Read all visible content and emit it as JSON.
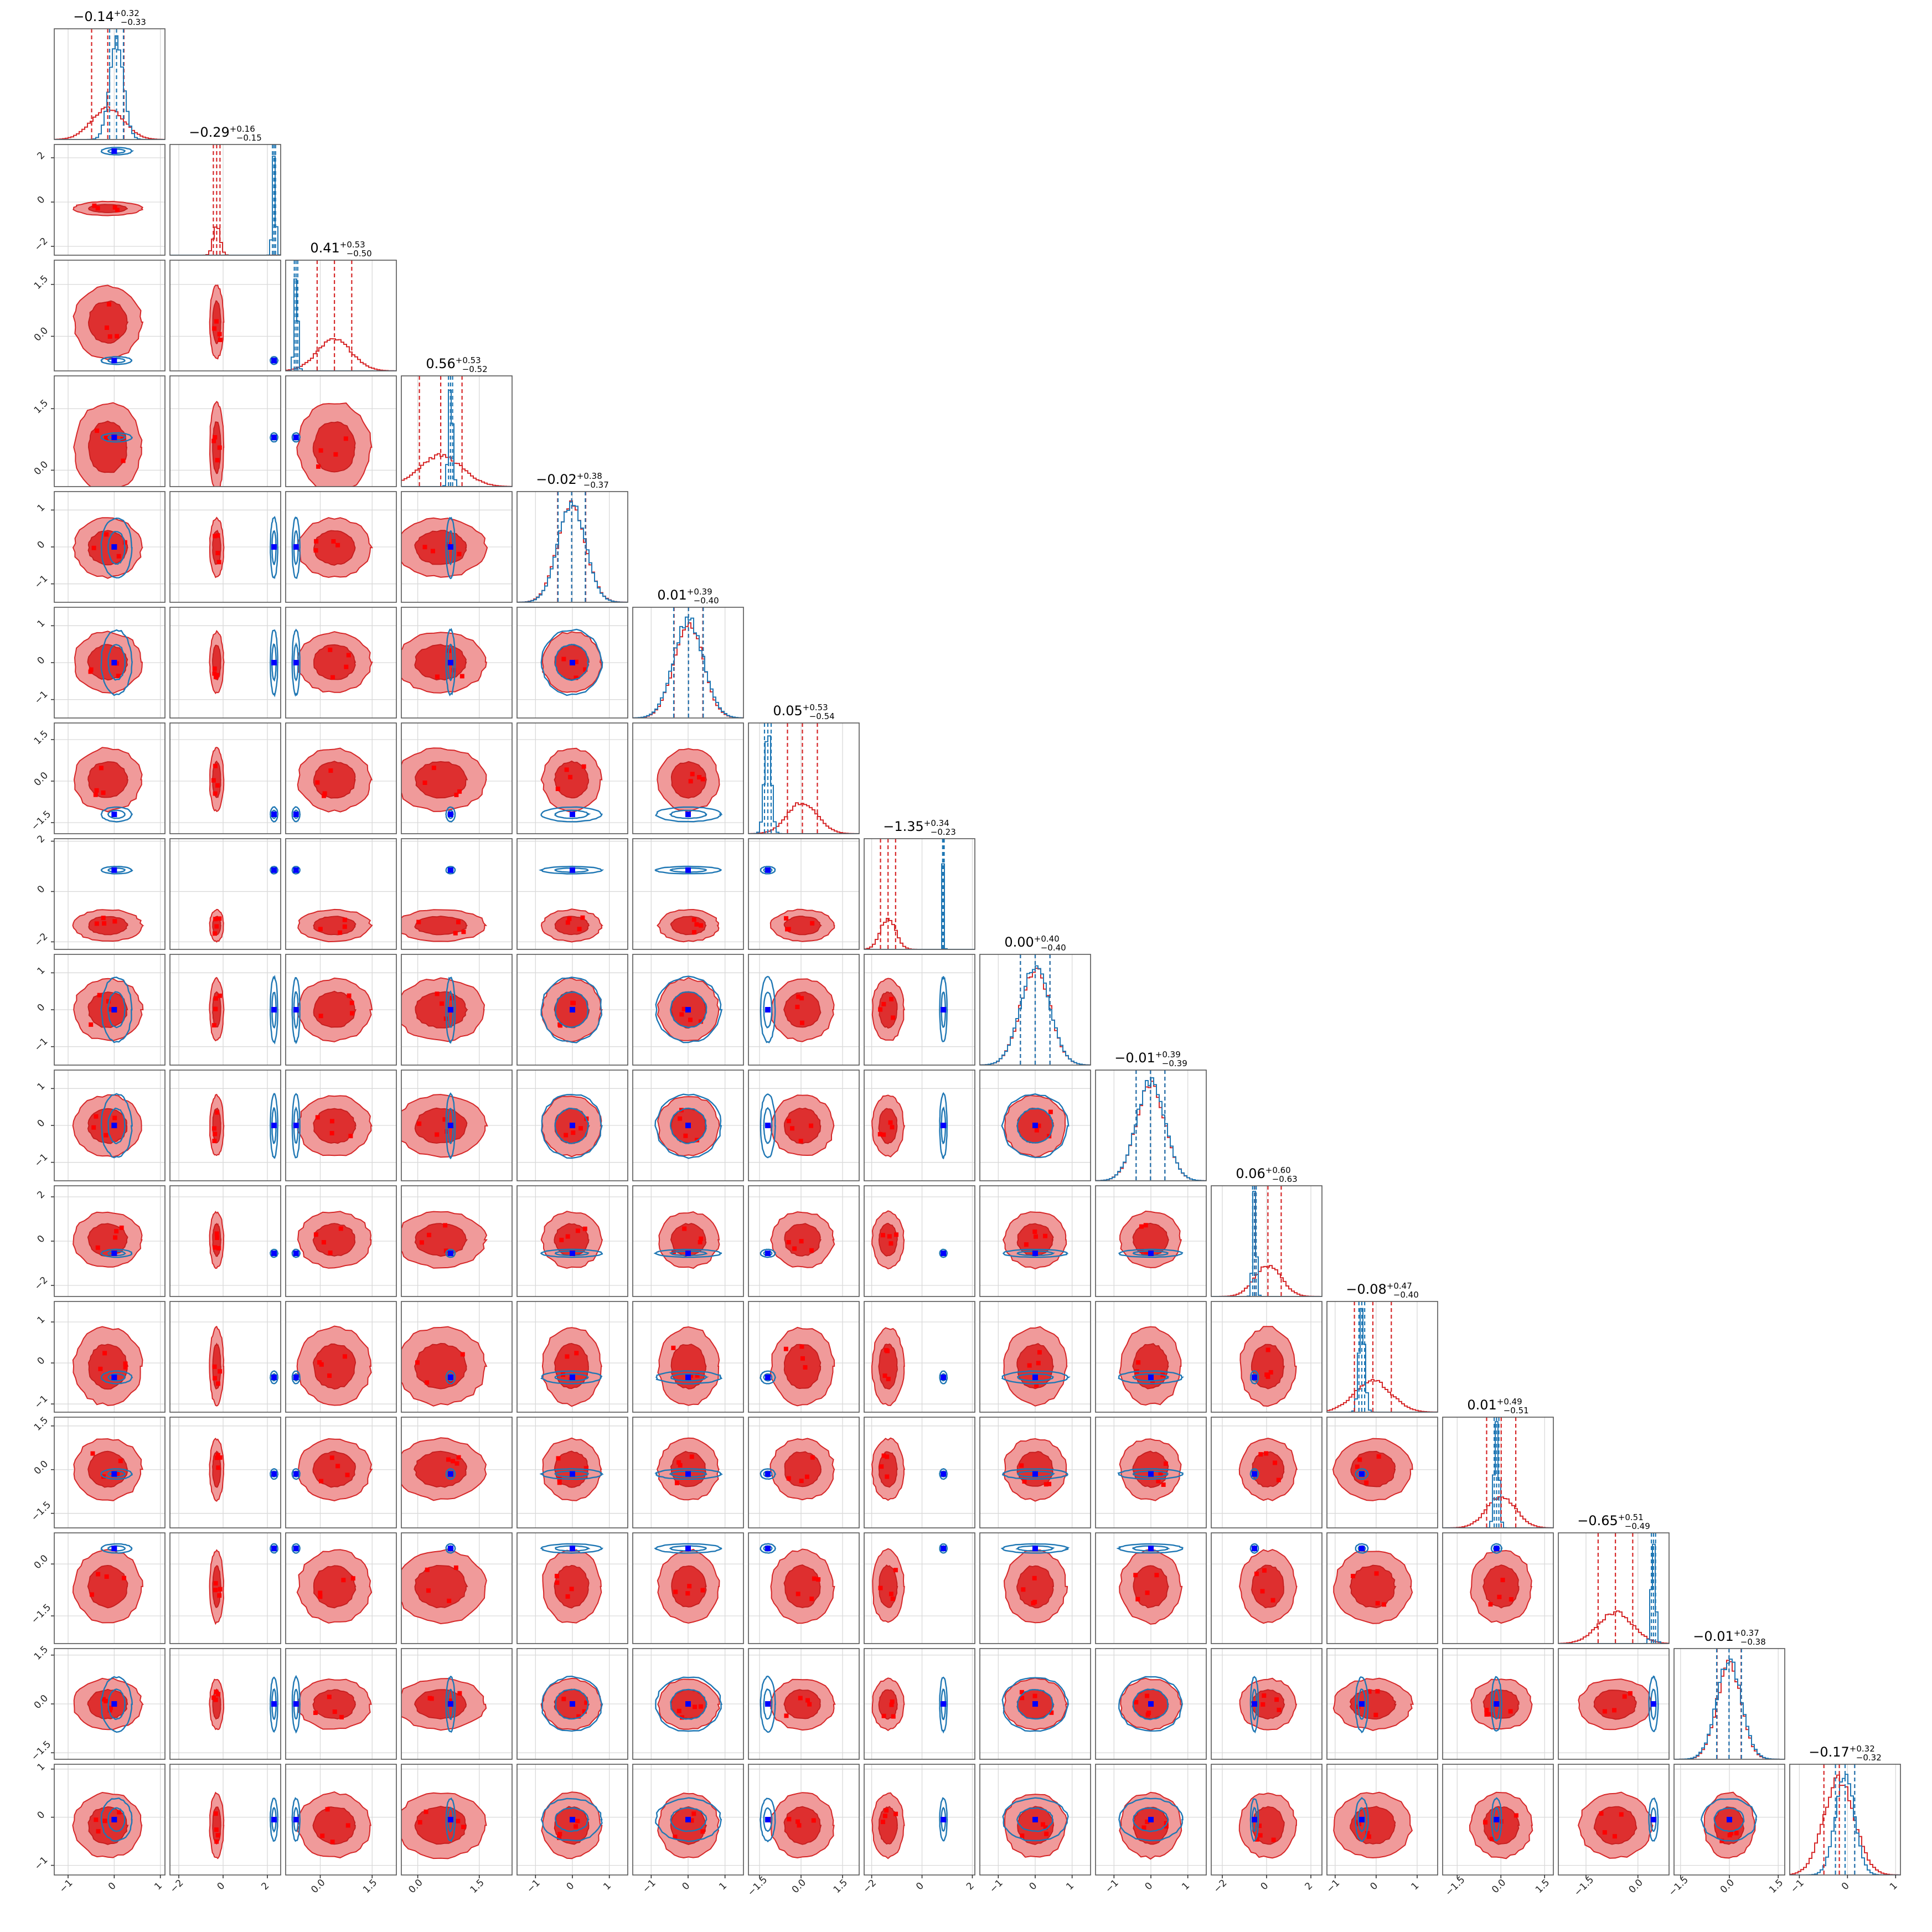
{
  "chart_data": {
    "type": "corner",
    "n_params": 16,
    "grid": true,
    "series": [
      {
        "name": "",
        "color": "#d62728",
        "style": "filled contours + histograms"
      },
      {
        "name": "",
        "color": "#1f77b4",
        "style": "line contours + histograms"
      }
    ],
    "marker_colors": {
      "red": "#ff0000",
      "blue": "#0000ff"
    },
    "titles": [
      {
        "median": "−0.14",
        "plus": "+0.32",
        "minus": "−0.33"
      },
      {
        "median": "−0.29",
        "plus": "+0.16",
        "minus": "−0.15"
      },
      {
        "median": "0.41",
        "plus": "+0.53",
        "minus": "−0.50"
      },
      {
        "median": "0.56",
        "plus": "+0.53",
        "minus": "−0.52"
      },
      {
        "median": "−0.02",
        "plus": "+0.38",
        "minus": "−0.37"
      },
      {
        "median": "0.01",
        "plus": "+0.39",
        "minus": "−0.40"
      },
      {
        "median": "0.05",
        "plus": "+0.53",
        "minus": "−0.54"
      },
      {
        "median": "−1.35",
        "plus": "+0.34",
        "minus": "−0.23"
      },
      {
        "median": "0.00",
        "plus": "+0.40",
        "minus": "−0.40"
      },
      {
        "median": "−0.01",
        "plus": "+0.39",
        "minus": "−0.39"
      },
      {
        "median": "0.06",
        "plus": "+0.60",
        "minus": "−0.63"
      },
      {
        "median": "−0.08",
        "plus": "+0.47",
        "minus": "−0.40"
      },
      {
        "median": "0.01",
        "plus": "+0.49",
        "minus": "−0.51"
      },
      {
        "median": "−0.65",
        "plus": "+0.51",
        "minus": "−0.49"
      },
      {
        "median": "−0.01",
        "plus": "+0.37",
        "minus": "−0.38"
      },
      {
        "median": "−0.17",
        "plus": "+0.32",
        "minus": "−0.32"
      }
    ],
    "params": [
      {
        "range": [
          -1.3,
          1.1
        ],
        "ticks": [
          -1,
          0,
          1
        ],
        "tick_labels": [
          "−1",
          "0",
          "1"
        ],
        "red": {
          "mu": -0.14,
          "sigma": 0.35
        },
        "blue": {
          "mu": 0.05,
          "sigma": 0.15
        },
        "truth": 0.0
      },
      {
        "range": [
          -2.4,
          2.6
        ],
        "ticks": [
          -2,
          0,
          2
        ],
        "tick_labels": [
          "−2",
          "0",
          "2"
        ],
        "red": {
          "mu": -0.29,
          "sigma": 0.15
        },
        "blue": {
          "mu": 2.3,
          "sigma": 0.07
        },
        "truth": 2.3
      },
      {
        "range": [
          -1.0,
          2.2
        ],
        "ticks": [
          0.0,
          1.5
        ],
        "tick_labels": [
          "0.0",
          "1.5"
        ],
        "red": {
          "mu": 0.41,
          "sigma": 0.5
        },
        "blue": {
          "mu": -0.7,
          "sigma": 0.05
        },
        "truth": -0.7
      },
      {
        "range": [
          -0.4,
          2.3
        ],
        "ticks": [
          0.0,
          1.5
        ],
        "tick_labels": [
          "0.0",
          "1.5"
        ],
        "red": {
          "mu": 0.56,
          "sigma": 0.52
        },
        "blue": {
          "mu": 0.8,
          "sigma": 0.05
        },
        "truth": 0.8
      },
      {
        "range": [
          -1.5,
          1.5
        ],
        "ticks": [
          -1,
          0,
          1
        ],
        "tick_labels": [
          "−1",
          "0",
          "1"
        ],
        "red": {
          "mu": -0.02,
          "sigma": 0.38
        },
        "blue": {
          "mu": -0.02,
          "sigma": 0.37
        },
        "truth": 0.0
      },
      {
        "range": [
          -1.5,
          1.5
        ],
        "ticks": [
          -1,
          0,
          1
        ],
        "tick_labels": [
          "−1",
          "0",
          "1"
        ],
        "red": {
          "mu": 0.01,
          "sigma": 0.39
        },
        "blue": {
          "mu": 0.01,
          "sigma": 0.4
        },
        "truth": 0.0
      },
      {
        "range": [
          -1.9,
          2.1
        ],
        "ticks": [
          -1.5,
          0.0,
          1.5
        ],
        "tick_labels": [
          "−1.5",
          "0.0",
          "1.5"
        ],
        "red": {
          "mu": 0.05,
          "sigma": 0.54
        },
        "blue": {
          "mu": -1.2,
          "sigma": 0.12
        },
        "truth": -1.2
      },
      {
        "range": [
          -2.3,
          2.1
        ],
        "ticks": [
          -2,
          0,
          2
        ],
        "tick_labels": [
          "−2",
          "0",
          "2"
        ],
        "red": {
          "mu": -1.35,
          "sigma": 0.3
        },
        "blue": {
          "mu": 0.85,
          "sigma": 0.03
        },
        "truth": 0.85
      },
      {
        "range": [
          -1.5,
          1.5
        ],
        "ticks": [
          -1,
          0,
          1
        ],
        "tick_labels": [
          "−1",
          "0",
          "1"
        ],
        "red": {
          "mu": 0.0,
          "sigma": 0.4
        },
        "blue": {
          "mu": 0.0,
          "sigma": 0.4
        },
        "truth": 0.0
      },
      {
        "range": [
          -1.5,
          1.5
        ],
        "ticks": [
          -1,
          0,
          1
        ],
        "tick_labels": [
          "−1",
          "0",
          "1"
        ],
        "red": {
          "mu": -0.01,
          "sigma": 0.39
        },
        "blue": {
          "mu": -0.01,
          "sigma": 0.39
        },
        "truth": 0.0
      },
      {
        "range": [
          -2.5,
          2.5
        ],
        "ticks": [
          -2,
          0,
          2
        ],
        "tick_labels": [
          "−2",
          "0",
          "2"
        ],
        "red": {
          "mu": 0.06,
          "sigma": 0.6
        },
        "blue": {
          "mu": -0.55,
          "sigma": 0.08
        },
        "truth": -0.55
      },
      {
        "range": [
          -1.2,
          1.5
        ],
        "ticks": [
          -1,
          0,
          1
        ],
        "tick_labels": [
          "−1",
          "0",
          "1"
        ],
        "red": {
          "mu": -0.08,
          "sigma": 0.45
        },
        "blue": {
          "mu": -0.35,
          "sigma": 0.07
        },
        "truth": -0.35
      },
      {
        "range": [
          -2.0,
          1.8
        ],
        "ticks": [
          -1.5,
          0.0,
          1.5
        ],
        "tick_labels": [
          "−1.5",
          "0.0",
          "1.5"
        ],
        "red": {
          "mu": 0.01,
          "sigma": 0.5
        },
        "blue": {
          "mu": -0.15,
          "sigma": 0.08
        },
        "truth": -0.15
      },
      {
        "range": [
          -2.3,
          0.9
        ],
        "ticks": [
          -1.5,
          0.0
        ],
        "tick_labels": [
          "−1.5",
          "0.0"
        ],
        "red": {
          "mu": -0.65,
          "sigma": 0.5
        },
        "blue": {
          "mu": 0.45,
          "sigma": 0.06
        },
        "truth": 0.45
      },
      {
        "range": [
          -1.7,
          1.7
        ],
        "ticks": [
          -1.5,
          0.0,
          1.5
        ],
        "tick_labels": [
          "−1.5",
          "0.0",
          "1.5"
        ],
        "red": {
          "mu": -0.01,
          "sigma": 0.37
        },
        "blue": {
          "mu": -0.01,
          "sigma": 0.38
        },
        "truth": 0.0
      },
      {
        "range": [
          -1.2,
          1.1
        ],
        "ticks": [
          -1,
          0,
          1
        ],
        "tick_labels": [
          "−1",
          "0",
          "1"
        ],
        "red": {
          "mu": -0.17,
          "sigma": 0.32
        },
        "blue": {
          "mu": -0.05,
          "sigma": 0.2
        },
        "truth": -0.05
      }
    ]
  }
}
